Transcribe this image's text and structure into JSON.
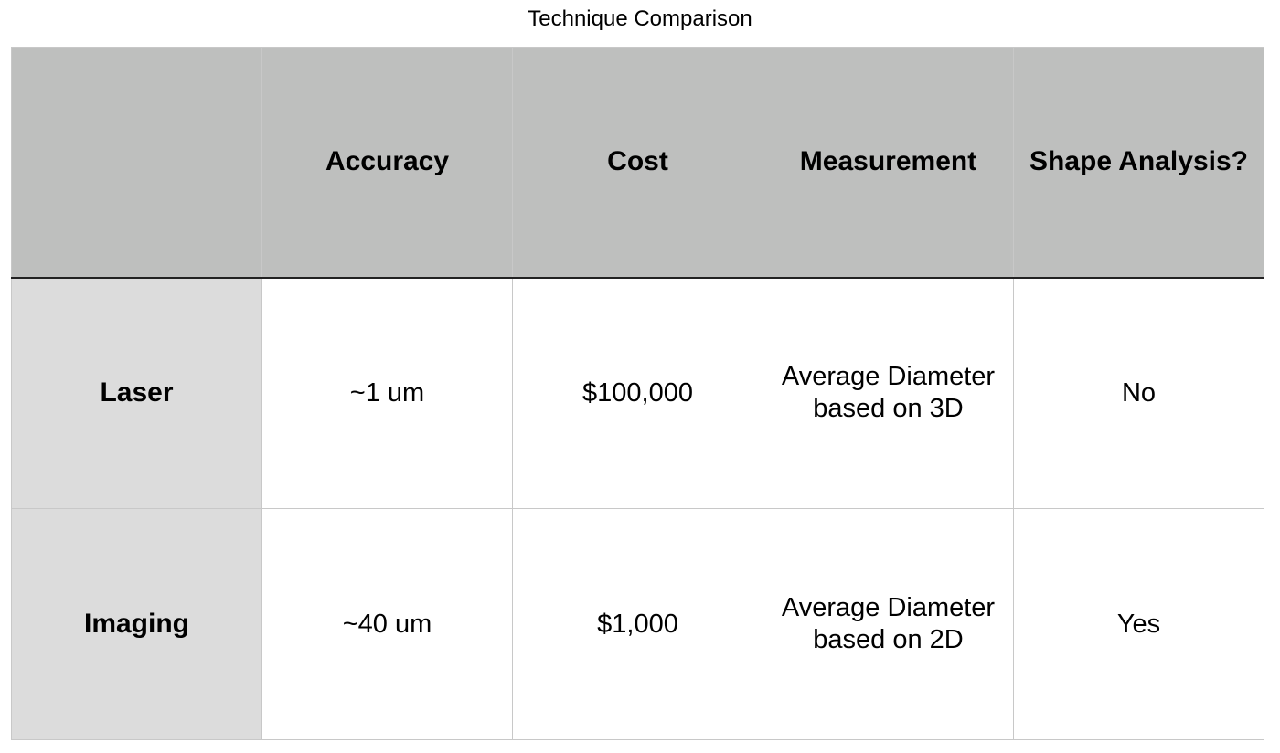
{
  "title": "Technique Comparison",
  "table": {
    "columns": [
      "",
      "Accuracy",
      "Cost",
      "Measurement",
      "Shape Analysis?"
    ],
    "rows": [
      {
        "label": "Laser",
        "accuracy": "~1 um",
        "cost": "$100,000",
        "measurement_line1": "Average Diameter",
        "measurement_line2": "based on 3D",
        "shape_analysis": "No"
      },
      {
        "label": "Imaging",
        "accuracy": "~40 um",
        "cost": "$1,000",
        "measurement_line1": "Average Diameter",
        "measurement_line2": "based on 2D",
        "shape_analysis": "Yes"
      }
    ]
  },
  "colors": {
    "header_bg": "#bebfbe",
    "row_header_bg": "#dcdcdc",
    "cell_bg": "#ffffff",
    "grid_line": "#c8c8c8",
    "separator_line": "#222222"
  }
}
